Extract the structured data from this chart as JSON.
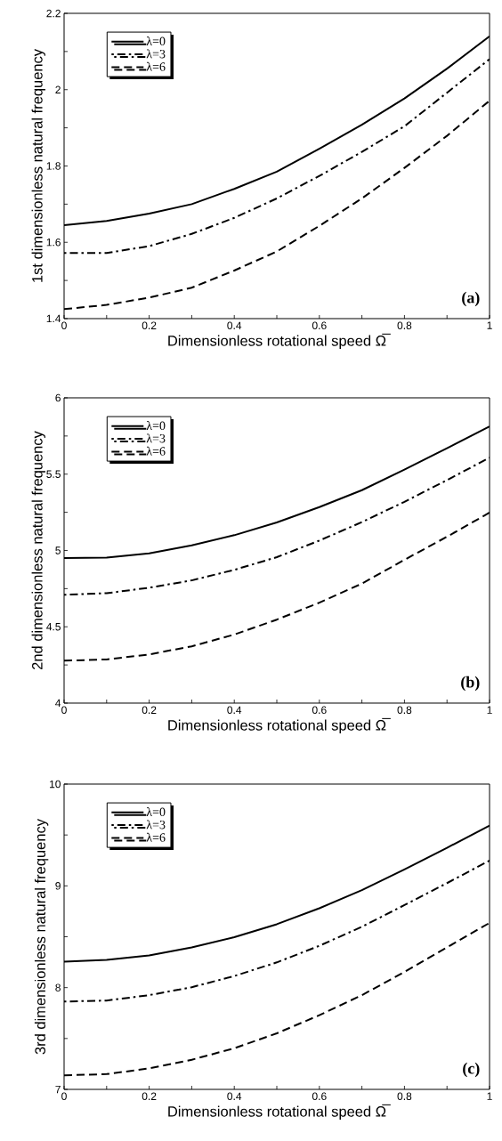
{
  "chart_data": [
    {
      "type": "line",
      "xlabel": "Dimensionless rotational speed Ω̅",
      "ylabel": "1st dimensionless natural frequency",
      "annotations": [
        "(a)"
      ],
      "legend": "top left",
      "x": [
        0,
        0.1,
        0.2,
        0.3,
        0.4,
        0.5,
        0.6,
        0.7,
        0.8,
        0.9,
        1.0
      ],
      "xlim": [
        0,
        1
      ],
      "ylim": [
        1.4,
        2.2
      ],
      "xticks": [
        0,
        {
          "value": 0.1,
          "label": null
        },
        0.2,
        {
          "value": 0.3,
          "label": null
        },
        0.4,
        {
          "value": 0.5,
          "label": null
        },
        0.6,
        {
          "value": 0.7,
          "label": null
        },
        0.8,
        {
          "value": 0.9,
          "label": null
        },
        1
      ],
      "yticks": [
        1.4,
        {
          "value": 1.5,
          "label": null
        },
        1.6,
        {
          "value": 1.7,
          "label": null
        },
        1.8,
        {
          "value": 1.9,
          "label": null
        },
        2,
        {
          "value": 2.1,
          "label": null
        },
        2.2
      ],
      "series": [
        {
          "name": "λ=0",
          "color": "#000000",
          "line_style": "solid",
          "values": [
            1.645,
            1.656,
            1.675,
            1.7,
            1.74,
            1.785,
            1.845,
            1.908,
            1.977,
            2.055,
            2.14
          ]
        },
        {
          "name": "λ=3",
          "color": "#000000",
          "line_style": "dashdot",
          "values": [
            1.572,
            1.572,
            1.59,
            1.622,
            1.664,
            1.715,
            1.774,
            1.837,
            1.904,
            1.992,
            2.08
          ]
        },
        {
          "name": "λ=6",
          "color": "#000000",
          "line_style": "dashed",
          "values": [
            1.425,
            1.436,
            1.455,
            1.481,
            1.526,
            1.576,
            1.643,
            1.715,
            1.795,
            1.879,
            1.971
          ]
        }
      ]
    },
    {
      "type": "line",
      "xlabel": "Dimensionless rotational speed Ω̅",
      "ylabel": "2nd dimensionless natural frequency",
      "annotations": [
        "(b)"
      ],
      "legend": "top left",
      "x": [
        0,
        0.1,
        0.2,
        0.3,
        0.4,
        0.5,
        0.6,
        0.7,
        0.8,
        0.9,
        1.0
      ],
      "xlim": [
        0,
        1
      ],
      "ylim": [
        4,
        6
      ],
      "xticks": [
        0,
        {
          "value": 0.1,
          "label": null
        },
        0.2,
        {
          "value": 0.3,
          "label": null
        },
        0.4,
        {
          "value": 0.5,
          "label": null
        },
        0.6,
        {
          "value": 0.7,
          "label": null
        },
        0.8,
        {
          "value": 0.9,
          "label": null
        },
        1
      ],
      "yticks": [
        4,
        {
          "value": 4.25,
          "label": null
        },
        4.5,
        {
          "value": 4.75,
          "label": null
        },
        5,
        {
          "value": 5.25,
          "label": null
        },
        5.5,
        {
          "value": 5.75,
          "label": null
        },
        6
      ],
      "series": [
        {
          "name": "λ=0",
          "color": "#000000",
          "line_style": "solid",
          "values": [
            4.95,
            4.954,
            4.981,
            5.033,
            5.1,
            5.184,
            5.284,
            5.395,
            5.53,
            5.67,
            5.812
          ]
        },
        {
          "name": "λ=3",
          "color": "#000000",
          "line_style": "dashdot",
          "values": [
            4.71,
            4.72,
            4.756,
            4.804,
            4.873,
            4.956,
            5.065,
            5.186,
            5.319,
            5.461,
            5.608
          ]
        },
        {
          "name": "λ=6",
          "color": "#000000",
          "line_style": "dashed",
          "values": [
            4.278,
            4.286,
            4.319,
            4.372,
            4.449,
            4.547,
            4.658,
            4.783,
            4.939,
            5.09,
            5.248
          ]
        }
      ]
    },
    {
      "type": "line",
      "xlabel": "Dimensionless rotational speed Ω̅",
      "ylabel": "3rd dimensionless natural frequency",
      "annotations": [
        "(c)"
      ],
      "legend": "top left",
      "x": [
        0,
        0.1,
        0.2,
        0.3,
        0.4,
        0.5,
        0.6,
        0.7,
        0.8,
        0.9,
        1.0
      ],
      "xlim": [
        0,
        1
      ],
      "ylim": [
        7,
        10
      ],
      "xticks": [
        0,
        {
          "value": 0.1,
          "label": null
        },
        0.2,
        {
          "value": 0.3,
          "label": null
        },
        0.4,
        {
          "value": 0.5,
          "label": null
        },
        0.6,
        {
          "value": 0.7,
          "label": null
        },
        0.8,
        {
          "value": 0.9,
          "label": null
        },
        1
      ],
      "yticks": [
        7,
        {
          "value": 7.5,
          "label": null
        },
        8,
        {
          "value": 8.5,
          "label": null
        },
        9,
        {
          "value": 9.5,
          "label": null
        },
        10
      ],
      "series": [
        {
          "name": "λ=0",
          "color": "#000000",
          "line_style": "solid",
          "values": [
            8.254,
            8.273,
            8.317,
            8.395,
            8.495,
            8.623,
            8.78,
            8.958,
            9.161,
            9.374,
            9.593
          ]
        },
        {
          "name": "λ=3",
          "color": "#000000",
          "line_style": "dashdot",
          "values": [
            7.863,
            7.873,
            7.926,
            8.004,
            8.114,
            8.248,
            8.411,
            8.598,
            8.811,
            9.027,
            9.249
          ]
        },
        {
          "name": "λ=6",
          "color": "#000000",
          "line_style": "dashed",
          "values": [
            7.138,
            7.15,
            7.206,
            7.291,
            7.404,
            7.551,
            7.729,
            7.926,
            8.154,
            8.395,
            8.636
          ]
        }
      ]
    }
  ]
}
